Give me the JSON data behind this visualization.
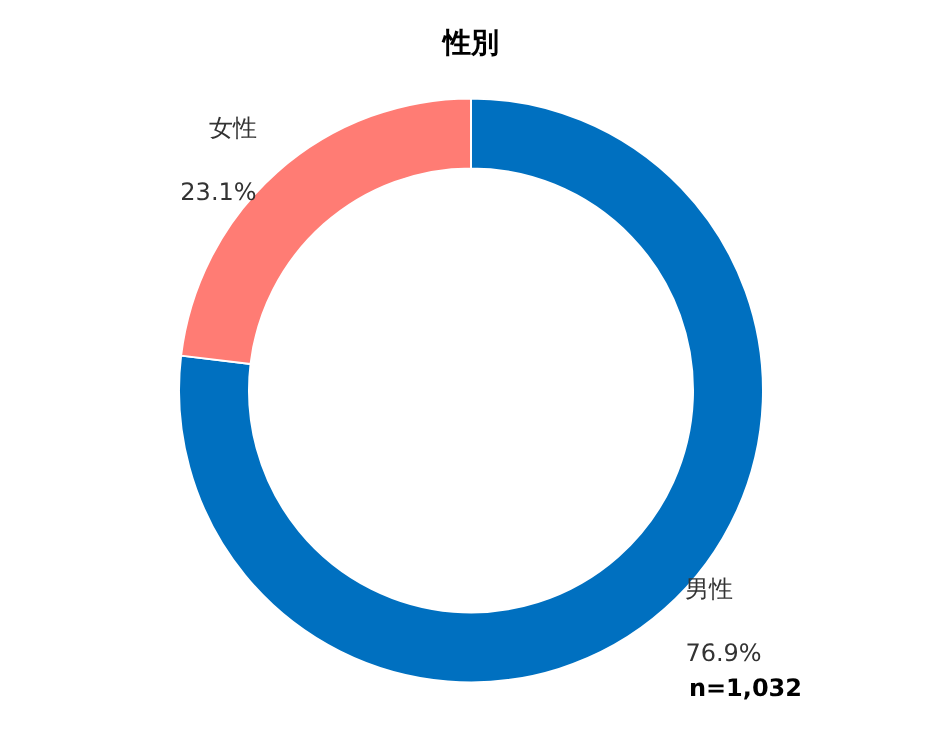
{
  "chart_data": {
    "type": "donut",
    "title": "性別",
    "categories": [
      "男性",
      "女性"
    ],
    "values": [
      76.9,
      23.1
    ],
    "colors": [
      "#0070c0",
      "#ff7c74"
    ],
    "value_labels": [
      "76.9%",
      "23.1%"
    ],
    "annotations": [
      "n=1,032"
    ],
    "legend": false
  }
}
